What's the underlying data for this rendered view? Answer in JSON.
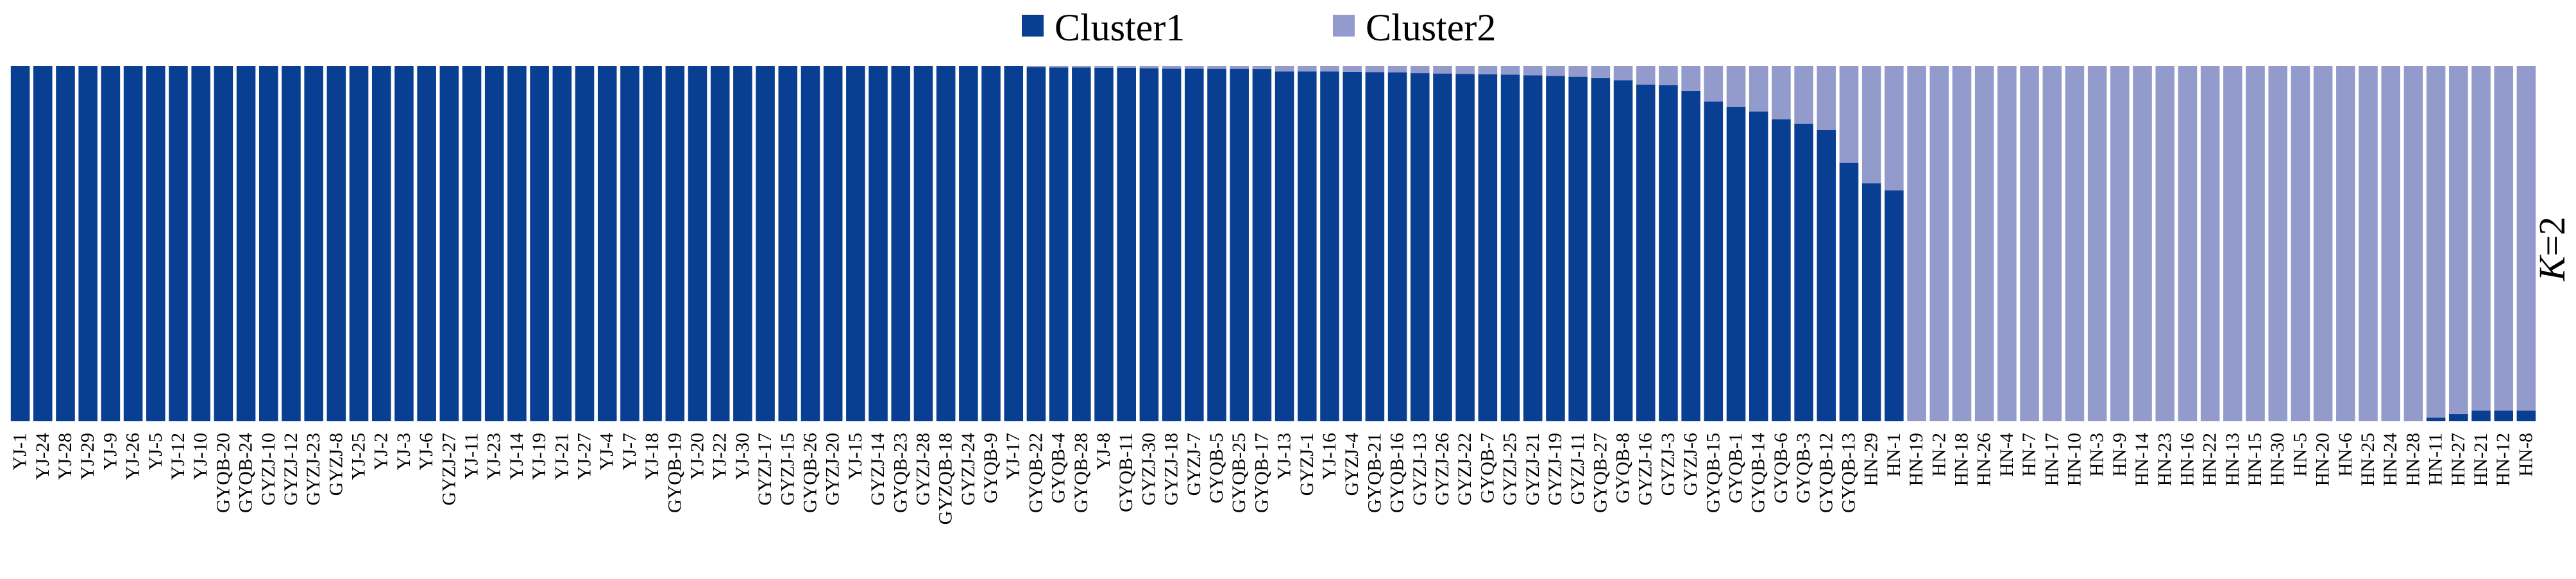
{
  "chart_data": {
    "type": "bar",
    "stacked": true,
    "normalized": true,
    "legend_position": "top-center",
    "k_label": {
      "italic": "K",
      "rest": "=2"
    },
    "colors": {
      "Cluster1": "#083f93",
      "Cluster2": "#929bcc"
    },
    "ylim": [
      0,
      1
    ],
    "categories": [
      "YJ-1",
      "YJ-24",
      "YJ-28",
      "YJ-29",
      "YJ-9",
      "YJ-26",
      "YJ-5",
      "YJ-12",
      "YJ-10",
      "GYQB-20",
      "GYQB-24",
      "GYZJ-10",
      "GYZJ-12",
      "GYZJ-23",
      "GYZJ-8",
      "YJ-25",
      "YJ-2",
      "YJ-3",
      "YJ-6",
      "GYZJ-27",
      "YJ-11",
      "YJ-23",
      "YJ-14",
      "YJ-19",
      "YJ-21",
      "YJ-27",
      "YJ-4",
      "YJ-7",
      "YJ-18",
      "GYQB-19",
      "YJ-20",
      "YJ-22",
      "YJ-30",
      "GYZJ-17",
      "GYZJ-15",
      "GYQB-26",
      "GYZJ-20",
      "YJ-15",
      "GYZJ-14",
      "GYQB-23",
      "GYZJ-28",
      "GYZQB-18",
      "GYZJ-24",
      "GYQB-9",
      "YJ-17",
      "GYQB-22",
      "GYQB-4",
      "GYQB-28",
      "YJ-8",
      "GYQB-11",
      "GYZJ-30",
      "GYZJ-18",
      "GYZJ-7",
      "GYQB-5",
      "GYQB-25",
      "GYQB-17",
      "YJ-13",
      "GYZJ-1",
      "YJ-16",
      "GYZJ-4",
      "GYQB-21",
      "GYQB-16",
      "GYZJ-13",
      "GYZJ-26",
      "GYZJ-22",
      "GYQB-7",
      "GYZJ-25",
      "GYZJ-21",
      "GYZJ-19",
      "GYZJ-11",
      "GYQB-27",
      "GYQB-8",
      "GYZJ-16",
      "GYZJ-3",
      "GYZJ-6",
      "GYQB-15",
      "GYQB-1",
      "GYQB-14",
      "GYQB-6",
      "GYQB-3",
      "GYQB-12",
      "GYQB-13",
      "HN-29",
      "HN-1",
      "HN-19",
      "HN-2",
      "HN-18",
      "HN-26",
      "HN-4",
      "HN-7",
      "HN-17",
      "HN-10",
      "HN-3",
      "HN-9",
      "HN-14",
      "HN-23",
      "HN-16",
      "HN-22",
      "HN-13",
      "HN-15",
      "HN-30",
      "HN-5",
      "HN-20",
      "HN-6",
      "HN-25",
      "HN-24",
      "HN-28",
      "HN-11",
      "HN-27",
      "HN-21",
      "HN-12",
      "HN-8"
    ],
    "series": [
      {
        "name": "Cluster1",
        "values": [
          1,
          1,
          1,
          1,
          1,
          1,
          1,
          1,
          1,
          1,
          1,
          1,
          1,
          1,
          1,
          1,
          1,
          1,
          1,
          1,
          1,
          1,
          1,
          1,
          1,
          1,
          1,
          1,
          1,
          1,
          1,
          1,
          1,
          1,
          1,
          1,
          1,
          1,
          1,
          1,
          1,
          1,
          1,
          1,
          1,
          0.997,
          0.996,
          0.996,
          0.995,
          0.995,
          0.994,
          0.993,
          0.993,
          0.992,
          0.992,
          0.991,
          0.985,
          0.985,
          0.985,
          0.984,
          0.983,
          0.982,
          0.98,
          0.979,
          0.978,
          0.977,
          0.976,
          0.974,
          0.972,
          0.97,
          0.966,
          0.96,
          0.948,
          0.946,
          0.93,
          0.9,
          0.885,
          0.872,
          0.85,
          0.838,
          0.82,
          0.728,
          0.67,
          0.65,
          0,
          0,
          0,
          0,
          0,
          0,
          0,
          0,
          0,
          0,
          0,
          0,
          0,
          0,
          0,
          0,
          0,
          0,
          0,
          0,
          0,
          0,
          0,
          0.01,
          0.02,
          0.03,
          0.03,
          0.03
        ]
      },
      {
        "name": "Cluster2",
        "values": [
          0,
          0,
          0,
          0,
          0,
          0,
          0,
          0,
          0,
          0,
          0,
          0,
          0,
          0,
          0,
          0,
          0,
          0,
          0,
          0,
          0,
          0,
          0,
          0,
          0,
          0,
          0,
          0,
          0,
          0,
          0,
          0,
          0,
          0,
          0,
          0,
          0,
          0,
          0,
          0,
          0,
          0,
          0,
          0,
          0,
          0.003,
          0.004,
          0.004,
          0.005,
          0.005,
          0.006,
          0.007,
          0.007,
          0.008,
          0.008,
          0.009,
          0.015,
          0.015,
          0.015,
          0.016,
          0.017,
          0.018,
          0.02,
          0.021,
          0.022,
          0.023,
          0.024,
          0.026,
          0.028,
          0.03,
          0.034,
          0.04,
          0.052,
          0.054,
          0.07,
          0.1,
          0.115,
          0.128,
          0.15,
          0.162,
          0.18,
          0.272,
          0.33,
          0.35,
          1,
          1,
          1,
          1,
          1,
          1,
          1,
          1,
          1,
          1,
          1,
          1,
          1,
          1,
          1,
          1,
          1,
          1,
          1,
          1,
          1,
          1,
          1,
          0.99,
          0.98,
          0.97,
          0.97,
          0.97
        ]
      }
    ]
  }
}
